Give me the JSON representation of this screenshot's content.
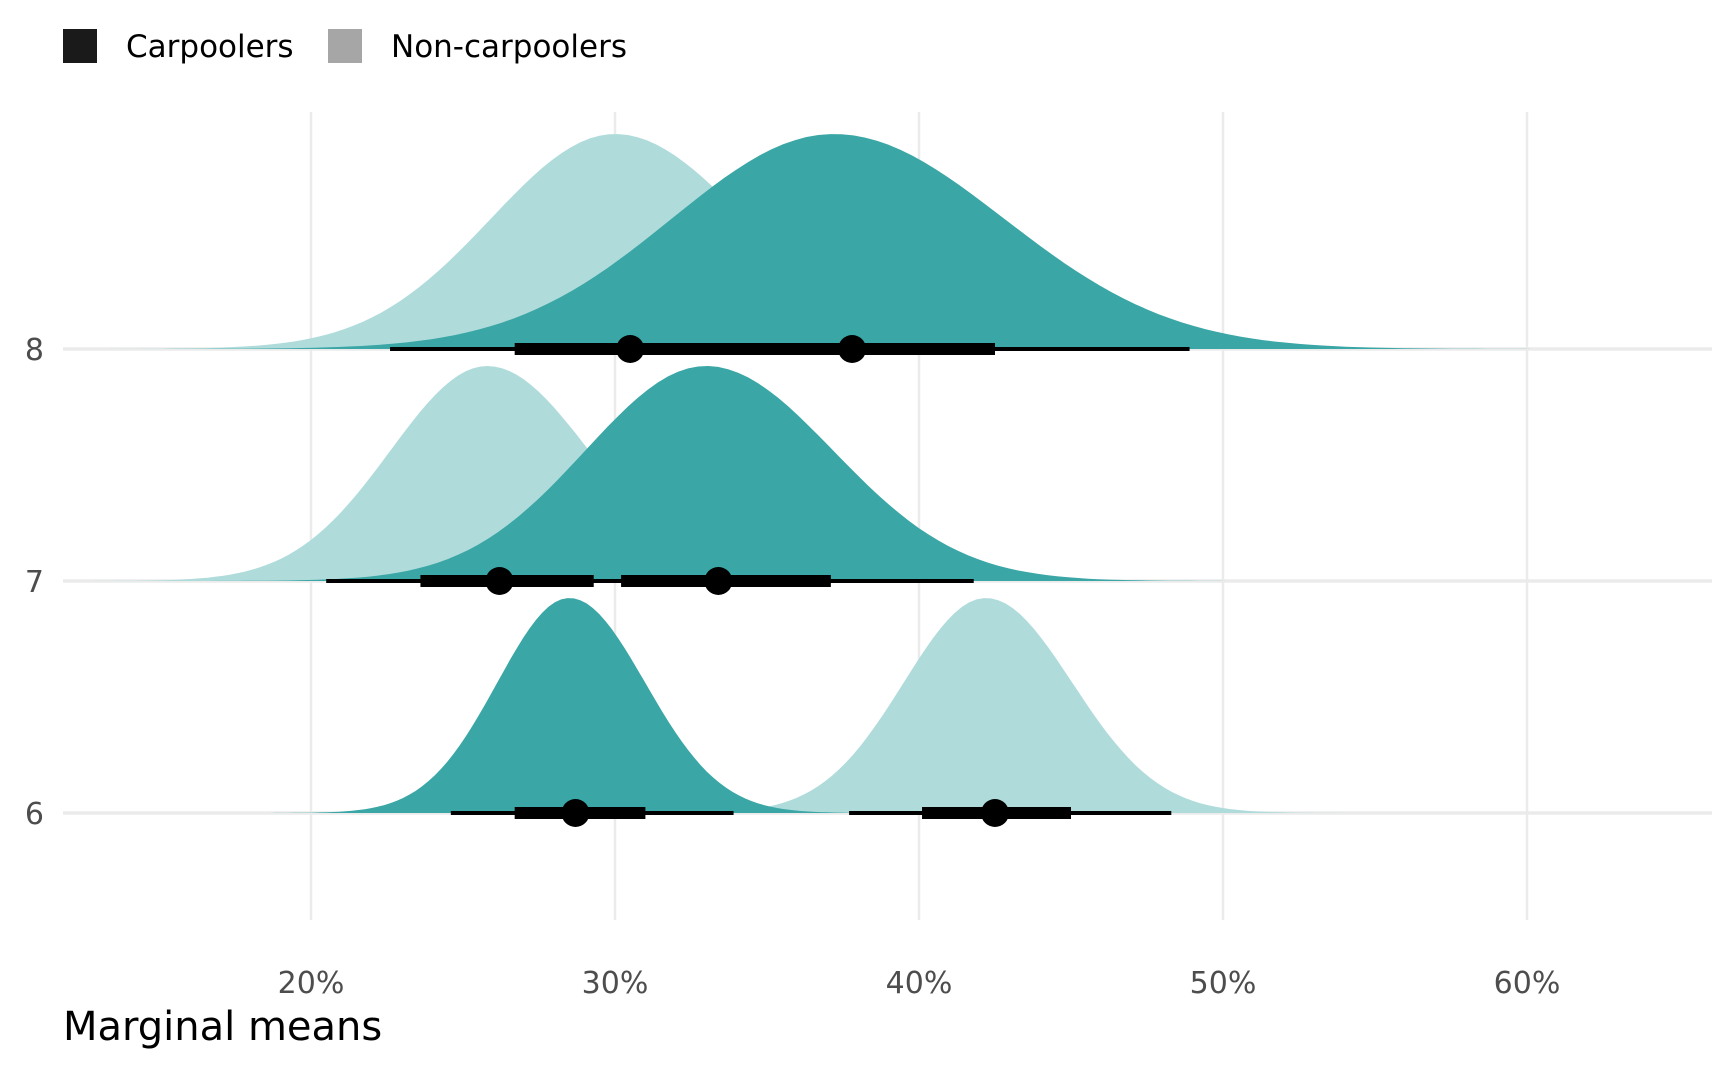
{
  "chart_data": {
    "type": "ridgeline",
    "title": "",
    "xlabel": "Marginal means",
    "ylabel": "",
    "xlim": [
      0.12,
      0.66
    ],
    "x_ticks": [
      {
        "value": 0.2,
        "label": "20%"
      },
      {
        "value": 0.3,
        "label": "30%"
      },
      {
        "value": 0.4,
        "label": "40%"
      },
      {
        "value": 0.5,
        "label": "50%"
      },
      {
        "value": 0.6,
        "label": "60%"
      }
    ],
    "y_ticks": [
      {
        "value": 6,
        "label": "6"
      },
      {
        "value": 7,
        "label": "7"
      },
      {
        "value": 8,
        "label": "8"
      }
    ],
    "grid": true,
    "legend": {
      "position": "top-left",
      "items": [
        {
          "name": "Carpoolers",
          "swatch_color": "#1a1a1a"
        },
        {
          "name": "Non-carpoolers",
          "swatch_color": "#a6a6a6"
        }
      ]
    },
    "colors": {
      "Carpoolers": "#3aa6a6",
      "Non-carpoolers": "#b0dbdb",
      "interval": "#000000",
      "grid": "#ebebeb"
    },
    "series": [
      {
        "name": "Non-carpoolers",
        "level": 8,
        "center": 0.305,
        "density_peak": 0.3,
        "q66": [
          0.267,
          0.346
        ],
        "q95": [
          0.226,
          0.386
        ]
      },
      {
        "name": "Carpoolers",
        "level": 8,
        "center": 0.378,
        "density_peak": 0.372,
        "q66": [
          0.335,
          0.425
        ],
        "q95": [
          0.28,
          0.489
        ]
      },
      {
        "name": "Non-carpoolers",
        "level": 7,
        "center": 0.262,
        "density_peak": 0.258,
        "q66": [
          0.236,
          0.293
        ],
        "q95": [
          0.205,
          0.33
        ]
      },
      {
        "name": "Carpoolers",
        "level": 7,
        "center": 0.334,
        "density_peak": 0.33,
        "q66": [
          0.302,
          0.371
        ],
        "q95": [
          0.262,
          0.418
        ]
      },
      {
        "name": "Carpoolers",
        "level": 6,
        "center": 0.287,
        "density_peak": 0.285,
        "q66": [
          0.267,
          0.31
        ],
        "q95": [
          0.246,
          0.339
        ]
      },
      {
        "name": "Non-carpoolers",
        "level": 6,
        "center": 0.425,
        "density_peak": 0.422,
        "q66": [
          0.401,
          0.45
        ],
        "q95": [
          0.377,
          0.483
        ]
      }
    ]
  }
}
